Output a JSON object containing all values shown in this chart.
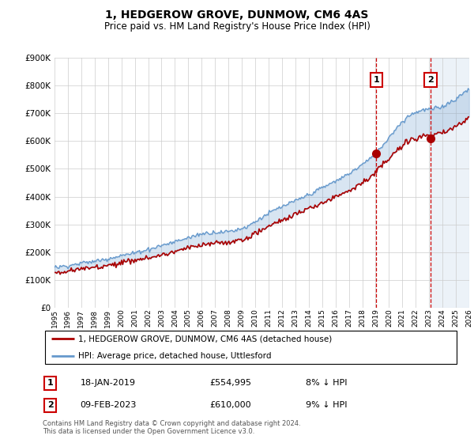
{
  "title": "1, HEDGEROW GROVE, DUNMOW, CM6 4AS",
  "subtitle": "Price paid vs. HM Land Registry's House Price Index (HPI)",
  "legend_line1": "1, HEDGEROW GROVE, DUNMOW, CM6 4AS (detached house)",
  "legend_line2": "HPI: Average price, detached house, Uttlesford",
  "annotation1_label": "1",
  "annotation1_date": "18-JAN-2019",
  "annotation1_price": "£554,995",
  "annotation1_hpi": "8% ↓ HPI",
  "annotation2_label": "2",
  "annotation2_date": "09-FEB-2023",
  "annotation2_price": "£610,000",
  "annotation2_hpi": "9% ↓ HPI",
  "footnote": "Contains HM Land Registry data © Crown copyright and database right 2024.\nThis data is licensed under the Open Government Licence v3.0.",
  "hpi_color": "#6699cc",
  "hpi_fill_color": "#ddeeff",
  "price_color": "#aa0000",
  "vline_color": "#cc0000",
  "annotation_box_color": "#cc0000",
  "ylim_min": 0,
  "ylim_max": 900000,
  "ytick_step": 100000,
  "start_year": 1995,
  "end_year": 2026,
  "sale1_year": 2019.05,
  "sale2_year": 2023.1,
  "sale1_price": 554995,
  "sale2_price": 610000
}
